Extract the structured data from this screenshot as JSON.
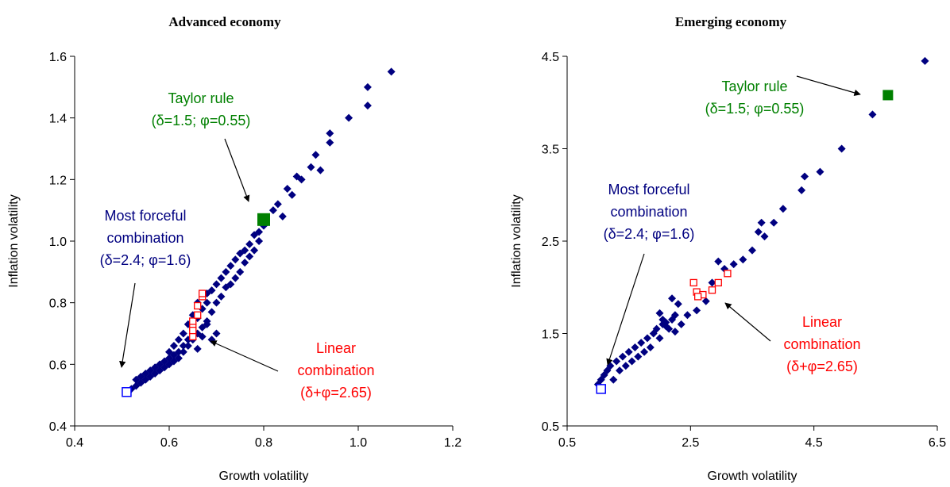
{
  "chart_data": [
    {
      "type": "scatter",
      "title": "Advanced economy",
      "xlabel": "Growth volatility",
      "ylabel": "Inflation volatility",
      "xlim": [
        0.4,
        1.2
      ],
      "ylim": [
        0.4,
        1.6
      ],
      "xticks": [
        "0.4",
        "0.6",
        "0.8",
        "1.0",
        "1.2"
      ],
      "yticks": [
        "0.4",
        "0.6",
        "0.8",
        "1.0",
        "1.2",
        "1.4",
        "1.6"
      ],
      "grid": false,
      "colors": {
        "main": "#000080",
        "linear": "#ff0000",
        "taylor": "#008000",
        "forceful": "#0000ff"
      },
      "series": [
        {
          "marker": "diamond",
          "points": [
            [
              0.52,
              0.52
            ],
            [
              0.53,
              0.53
            ],
            [
              0.53,
              0.55
            ],
            [
              0.54,
              0.54
            ],
            [
              0.54,
              0.56
            ],
            [
              0.55,
              0.57
            ],
            [
              0.55,
              0.55
            ],
            [
              0.56,
              0.58
            ],
            [
              0.56,
              0.56
            ],
            [
              0.57,
              0.59
            ],
            [
              0.57,
              0.57
            ],
            [
              0.58,
              0.6
            ],
            [
              0.58,
              0.58
            ],
            [
              0.59,
              0.61
            ],
            [
              0.59,
              0.59
            ],
            [
              0.6,
              0.62
            ],
            [
              0.6,
              0.6
            ],
            [
              0.6,
              0.64
            ],
            [
              0.61,
              0.63
            ],
            [
              0.61,
              0.61
            ],
            [
              0.61,
              0.66
            ],
            [
              0.62,
              0.64
            ],
            [
              0.62,
              0.62
            ],
            [
              0.62,
              0.68
            ],
            [
              0.63,
              0.66
            ],
            [
              0.63,
              0.64
            ],
            [
              0.63,
              0.7
            ],
            [
              0.64,
              0.68
            ],
            [
              0.64,
              0.66
            ],
            [
              0.64,
              0.73
            ],
            [
              0.65,
              0.7
            ],
            [
              0.65,
              0.68
            ],
            [
              0.65,
              0.76
            ],
            [
              0.66,
              0.75
            ],
            [
              0.66,
              0.7
            ],
            [
              0.67,
              0.78
            ],
            [
              0.67,
              0.72
            ],
            [
              0.68,
              0.8
            ],
            [
              0.68,
              0.74
            ],
            [
              0.68,
              0.83
            ],
            [
              0.69,
              0.77
            ],
            [
              0.69,
              0.84
            ],
            [
              0.7,
              0.8
            ],
            [
              0.7,
              0.86
            ],
            [
              0.71,
              0.82
            ],
            [
              0.71,
              0.88
            ],
            [
              0.72,
              0.85
            ],
            [
              0.72,
              0.9
            ],
            [
              0.73,
              0.86
            ],
            [
              0.73,
              0.92
            ],
            [
              0.74,
              0.88
            ],
            [
              0.74,
              0.94
            ],
            [
              0.75,
              0.9
            ],
            [
              0.75,
              0.96
            ],
            [
              0.76,
              0.93
            ],
            [
              0.76,
              0.97
            ],
            [
              0.77,
              0.95
            ],
            [
              0.77,
              0.99
            ],
            [
              0.78,
              0.97
            ],
            [
              0.78,
              1.02
            ],
            [
              0.79,
              1.0
            ],
            [
              0.79,
              1.03
            ],
            [
              0.8,
              1.05
            ],
            [
              0.82,
              1.1
            ],
            [
              0.83,
              1.12
            ],
            [
              0.84,
              1.08
            ],
            [
              0.85,
              1.17
            ],
            [
              0.86,
              1.15
            ],
            [
              0.87,
              1.21
            ],
            [
              0.88,
              1.2
            ],
            [
              0.9,
              1.24
            ],
            [
              0.91,
              1.28
            ],
            [
              0.92,
              1.23
            ],
            [
              0.94,
              1.32
            ],
            [
              0.94,
              1.35
            ],
            [
              0.98,
              1.4
            ],
            [
              1.02,
              1.44
            ],
            [
              1.02,
              1.5
            ],
            [
              1.07,
              1.55
            ],
            [
              0.66,
              0.65
            ],
            [
              0.67,
              0.69
            ],
            [
              0.68,
              0.73
            ],
            [
              0.69,
              0.68
            ],
            [
              0.7,
              0.7
            ],
            [
              0.66,
              0.8
            ]
          ]
        },
        {
          "marker": "open-square",
          "name": "",
          "points": [
            [
              0.65,
              0.69
            ],
            [
              0.65,
              0.72
            ],
            [
              0.65,
              0.74
            ],
            [
              0.66,
              0.76
            ],
            [
              0.66,
              0.79
            ],
            [
              0.67,
              0.82
            ],
            [
              0.67,
              0.83
            ],
            [
              0.65,
              0.71
            ]
          ]
        },
        {
          "marker": "square",
          "points": [
            [
              0.8,
              1.07
            ]
          ]
        },
        {
          "marker": "open-square-blue",
          "points": [
            [
              0.51,
              0.51
            ]
          ]
        }
      ],
      "annotations": [
        {
          "lines": [
            "Taylor rule",
            "(δ=1.5; φ=0.55)"
          ],
          "color": "#008000"
        },
        {
          "lines": [
            "Most forceful",
            "combination",
            "(δ=2.4; φ=1.6)"
          ],
          "color": "#000080"
        },
        {
          "lines": [
            "Linear",
            "combination",
            "(δ+φ=2.65)"
          ],
          "color": "#ff0000"
        }
      ]
    },
    {
      "type": "scatter",
      "title": "Emerging economy",
      "xlabel": "Growth volatility",
      "ylabel": "Inflation volatility",
      "xlim": [
        0.5,
        6.5
      ],
      "ylim": [
        0.5,
        4.5
      ],
      "xticks": [
        "0.5",
        "2.5",
        "4.5",
        "6.5"
      ],
      "yticks": [
        "0.5",
        "1.5",
        "2.5",
        "3.5",
        "4.5"
      ],
      "grid": false,
      "colors": {
        "main": "#000080",
        "linear": "#ff0000",
        "taylor": "#008000",
        "forceful": "#0000ff"
      },
      "series": [
        {
          "marker": "diamond",
          "points": [
            [
              1.0,
              0.95
            ],
            [
              1.05,
              1.0
            ],
            [
              1.1,
              1.05
            ],
            [
              1.15,
              1.1
            ],
            [
              1.2,
              1.15
            ],
            [
              1.25,
              1.0
            ],
            [
              1.3,
              1.2
            ],
            [
              1.35,
              1.1
            ],
            [
              1.4,
              1.25
            ],
            [
              1.45,
              1.15
            ],
            [
              1.5,
              1.3
            ],
            [
              1.55,
              1.2
            ],
            [
              1.6,
              1.35
            ],
            [
              1.65,
              1.25
            ],
            [
              1.7,
              1.4
            ],
            [
              1.75,
              1.3
            ],
            [
              1.8,
              1.45
            ],
            [
              1.85,
              1.35
            ],
            [
              1.9,
              1.5
            ],
            [
              1.95,
              1.55
            ],
            [
              2.0,
              1.45
            ],
            [
              2.05,
              1.6
            ],
            [
              2.1,
              1.62
            ],
            [
              2.15,
              1.55
            ],
            [
              2.2,
              1.65
            ],
            [
              2.25,
              1.7
            ],
            [
              2.0,
              1.72
            ],
            [
              2.05,
              1.65
            ],
            [
              2.1,
              1.58
            ],
            [
              2.2,
              1.88
            ],
            [
              2.3,
              1.82
            ],
            [
              2.25,
              1.52
            ],
            [
              2.35,
              1.6
            ],
            [
              2.45,
              1.7
            ],
            [
              2.6,
              1.75
            ],
            [
              2.75,
              1.85
            ],
            [
              2.85,
              2.05
            ],
            [
              2.95,
              2.28
            ],
            [
              3.05,
              2.2
            ],
            [
              3.2,
              2.25
            ],
            [
              3.35,
              2.3
            ],
            [
              3.5,
              2.4
            ],
            [
              3.6,
              2.6
            ],
            [
              3.7,
              2.55
            ],
            [
              3.65,
              2.7
            ],
            [
              3.85,
              2.7
            ],
            [
              4.0,
              2.85
            ],
            [
              4.3,
              3.05
            ],
            [
              4.35,
              3.2
            ],
            [
              4.6,
              3.25
            ],
            [
              4.95,
              3.5
            ],
            [
              5.45,
              3.87
            ],
            [
              6.3,
              4.45
            ]
          ]
        },
        {
          "marker": "open-square",
          "points": [
            [
              2.55,
              2.05
            ],
            [
              2.6,
              1.95
            ],
            [
              2.7,
              1.92
            ],
            [
              2.85,
              1.97
            ],
            [
              2.95,
              2.05
            ],
            [
              3.1,
              2.15
            ],
            [
              2.62,
              1.9
            ]
          ]
        },
        {
          "marker": "square",
          "points": [
            [
              5.7,
              4.08
            ]
          ]
        },
        {
          "marker": "open-square-blue",
          "points": [
            [
              1.05,
              0.9
            ]
          ]
        }
      ],
      "annotations": [
        {
          "lines": [
            "Taylor rule",
            "(δ=1.5; φ=0.55)"
          ],
          "color": "#008000"
        },
        {
          "lines": [
            "Most forceful",
            "combination",
            "(δ=2.4; φ=1.6)"
          ],
          "color": "#000080"
        },
        {
          "lines": [
            "Linear",
            "combination",
            "(δ+φ=2.65)"
          ],
          "color": "#ff0000"
        }
      ]
    }
  ]
}
